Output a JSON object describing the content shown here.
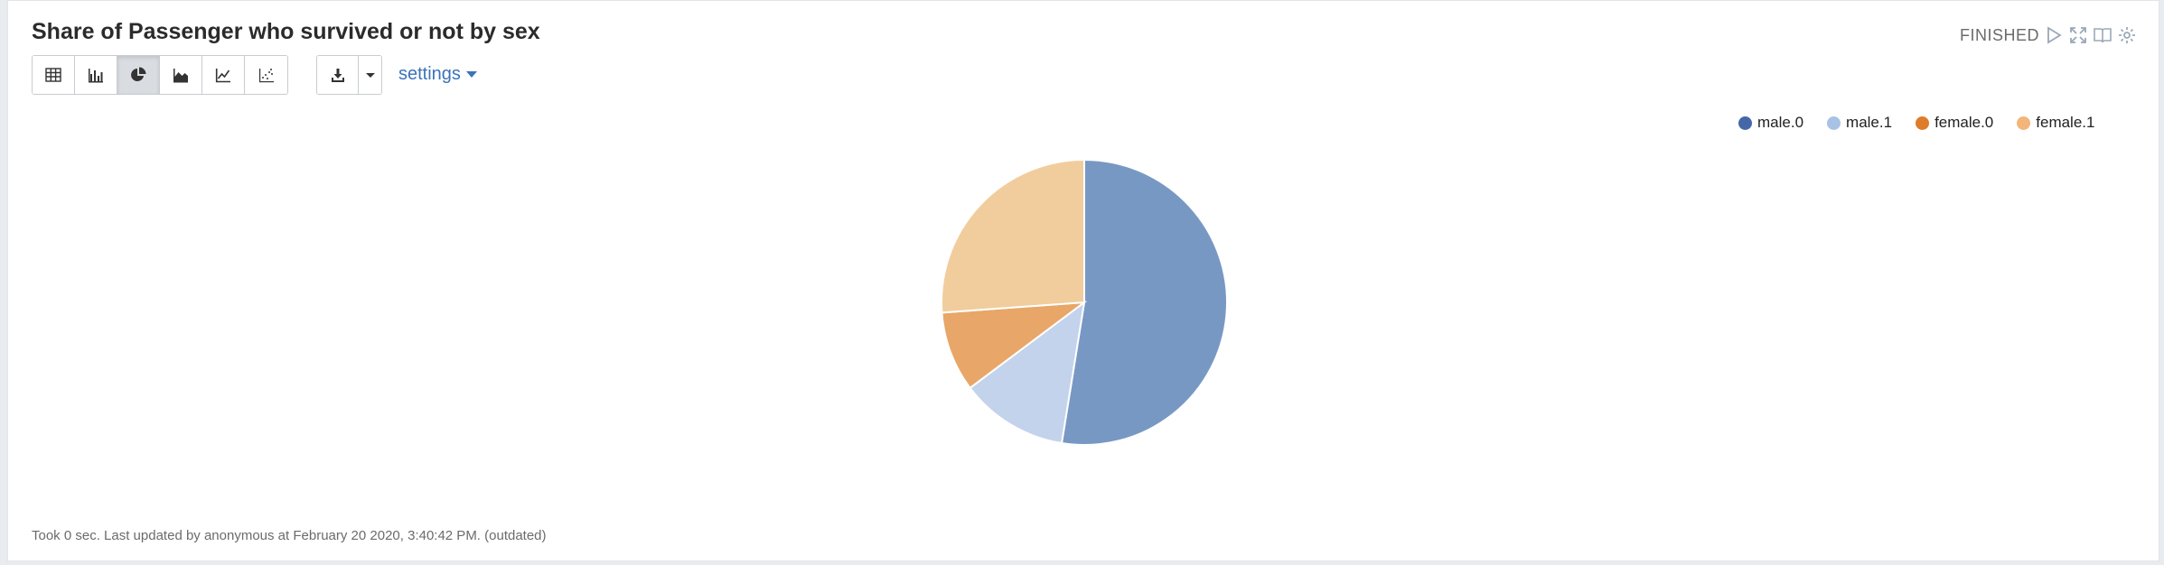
{
  "paragraph": {
    "title": "Share of Passenger who survived or not by sex",
    "status": "FINISHED",
    "settings_label": "settings",
    "footer": "Took 0 sec. Last updated by anonymous at February 20 2020, 3:40:42 PM. (outdated)"
  },
  "toolbar": {
    "views": [
      {
        "icon": "table-icon"
      },
      {
        "icon": "bar-chart-icon"
      },
      {
        "icon": "pie-chart-icon",
        "active": true
      },
      {
        "icon": "area-chart-icon"
      },
      {
        "icon": "line-chart-icon"
      },
      {
        "icon": "scatter-chart-icon"
      }
    ],
    "download_icon": "download-icon",
    "caret_icon": "caret-down-icon"
  },
  "controls": [
    "run-icon",
    "fullscreen-icon",
    "book-icon",
    "gear-icon"
  ],
  "chart_data": {
    "type": "pie",
    "categories": [
      "male.0",
      "male.1",
      "female.0",
      "female.1"
    ],
    "values": [
      468,
      109,
      81,
      233
    ],
    "colors": [
      "#7898c4",
      "#c3d3ec",
      "#e8a668",
      "#f1cd9d"
    ],
    "legend_colors": [
      "#4467a8",
      "#a8c2e6",
      "#dd7c2a",
      "#f2b67a"
    ],
    "legend_position": "top-right"
  }
}
